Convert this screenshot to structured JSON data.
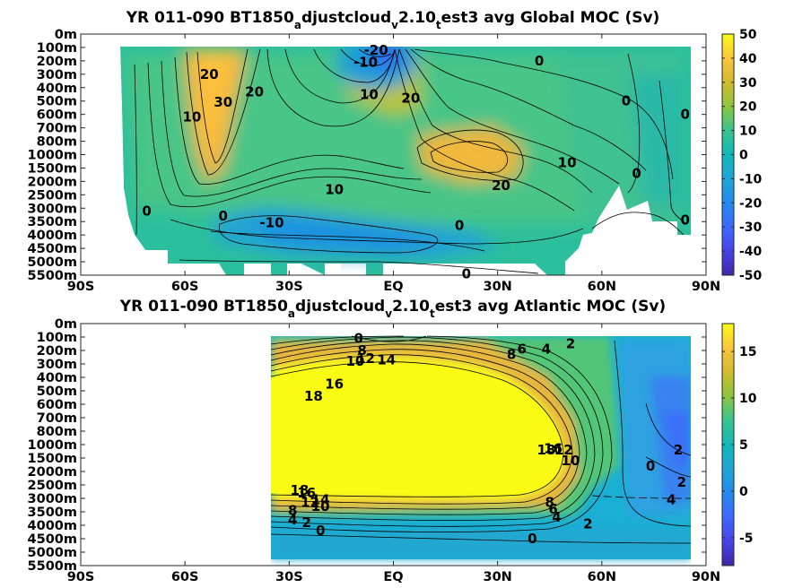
{
  "chart_data": [
    {
      "type": "heatmap",
      "title_parts": [
        "YR 011-090 BT1850",
        "a",
        "djustcloud",
        "v",
        "2.10",
        "t",
        "est3 avg  Global MOC (Sv)"
      ],
      "xlabel": "",
      "ylabel": "",
      "xlim": [
        -90,
        90
      ],
      "x_ticks": [
        -90,
        -60,
        -30,
        0,
        30,
        60,
        90
      ],
      "x_tick_labels": [
        "90S",
        "60S",
        "30S",
        "EQ",
        "30N",
        "60N",
        "90N"
      ],
      "y_tick_labels": [
        "0m",
        "100m",
        "200m",
        "300m",
        "400m",
        "500m",
        "600m",
        "700m",
        "800m",
        "1000m",
        "1500m",
        "2000m",
        "2500m",
        "3000m",
        "3500m",
        "4000m",
        "4500m",
        "5000m",
        "5500m"
      ],
      "colorbar": {
        "min": -50,
        "max": 50,
        "ticks": [
          50,
          40,
          30,
          20,
          10,
          0,
          -10,
          -20,
          -30,
          -40,
          -50
        ],
        "tick_labels": [
          "50",
          "40",
          "30",
          "20",
          "10",
          "0",
          "-10",
          "-20",
          "-30",
          "-40",
          "-50"
        ]
      },
      "colormap": "parula",
      "grid": false,
      "contour_labels": [
        {
          "text": "-20",
          "lat": -5,
          "level": 1.2
        },
        {
          "text": "-10",
          "lat": -8,
          "level": 2.1
        },
        {
          "text": "0",
          "lat": 42,
          "level": 2.0
        },
        {
          "text": "20",
          "lat": -53,
          "level": 3.0
        },
        {
          "text": "20",
          "lat": -40,
          "level": 4.3
        },
        {
          "text": "30",
          "lat": -49,
          "level": 5.1
        },
        {
          "text": "10",
          "lat": -58,
          "level": 6.2
        },
        {
          "text": "10",
          "lat": -7,
          "level": 4.5
        },
        {
          "text": "20",
          "lat": 5,
          "level": 4.8
        },
        {
          "text": "0",
          "lat": 67,
          "level": 5.0
        },
        {
          "text": "0",
          "lat": 84,
          "level": 6.0
        },
        {
          "text": "10",
          "lat": 50,
          "level": 9.6
        },
        {
          "text": "0",
          "lat": 70,
          "level": 10.4
        },
        {
          "text": "20",
          "lat": 31,
          "level": 11.3
        },
        {
          "text": "10",
          "lat": -17,
          "level": 11.6
        },
        {
          "text": "0",
          "lat": -71,
          "level": 13.2
        },
        {
          "text": "0",
          "lat": -49,
          "level": 13.6
        },
        {
          "text": "-10",
          "lat": -35,
          "level": 14.1
        },
        {
          "text": "0",
          "lat": 19,
          "level": 14.3
        },
        {
          "text": "0",
          "lat": 84,
          "level": 13.9
        },
        {
          "text": "0",
          "lat": 21,
          "level": 17.9
        }
      ]
    },
    {
      "type": "heatmap",
      "title_parts": [
        "YR 011-090 BT1850",
        "a",
        "djustcloud",
        "v",
        "2.10",
        "t",
        "est3 avg  Atlantic MOC (Sv)"
      ],
      "xlabel": "",
      "ylabel": "",
      "xlim": [
        -90,
        90
      ],
      "x_ticks": [
        -90,
        -60,
        -30,
        0,
        30,
        60,
        90
      ],
      "x_tick_labels": [
        "90S",
        "60S",
        "30S",
        "EQ",
        "30N",
        "60N",
        "90N"
      ],
      "y_tick_labels": [
        "0m",
        "100m",
        "200m",
        "300m",
        "400m",
        "500m",
        "600m",
        "700m",
        "800m",
        "1000m",
        "1500m",
        "2000m",
        "2500m",
        "3000m",
        "3500m",
        "4000m",
        "4500m",
        "5000m",
        "5500m"
      ],
      "colorbar": {
        "min": -8,
        "max": 18,
        "ticks": [
          15,
          10,
          5,
          0,
          -5
        ],
        "tick_labels": [
          "15",
          "10",
          "5",
          "0",
          "-5"
        ]
      },
      "colormap": "parula",
      "grid": false,
      "contour_labels": [
        {
          "text": "0",
          "lat": -10,
          "level": 1.1
        },
        {
          "text": "8",
          "lat": -9,
          "level": 2.0
        },
        {
          "text": "12",
          "lat": -8,
          "level": 2.6
        },
        {
          "text": "10",
          "lat": -11,
          "level": 2.8
        },
        {
          "text": "14",
          "lat": -2,
          "level": 2.7
        },
        {
          "text": "6",
          "lat": 37,
          "level": 1.9
        },
        {
          "text": "4",
          "lat": 44,
          "level": 1.9
        },
        {
          "text": "2",
          "lat": 51,
          "level": 1.5
        },
        {
          "text": "8",
          "lat": 34,
          "level": 2.3
        },
        {
          "text": "16",
          "lat": -17,
          "level": 4.5
        },
        {
          "text": "18",
          "lat": -23,
          "level": 5.4
        },
        {
          "text": "18",
          "lat": 44,
          "level": 9.4
        },
        {
          "text": "16",
          "lat": 46,
          "level": 9.3
        },
        {
          "text": "12",
          "lat": 49,
          "level": 9.4
        },
        {
          "text": "10",
          "lat": 51,
          "level": 10.2
        },
        {
          "text": "2",
          "lat": 82,
          "level": 9.4
        },
        {
          "text": "0",
          "lat": 74,
          "level": 10.6
        },
        {
          "text": "2",
          "lat": 83,
          "level": 11.8
        },
        {
          "text": "4",
          "lat": 80,
          "level": 13.1
        },
        {
          "text": "18",
          "lat": -27,
          "level": 12.4
        },
        {
          "text": "16",
          "lat": -25,
          "level": 12.6
        },
        {
          "text": "14",
          "lat": -21,
          "level": 13.1
        },
        {
          "text": "12",
          "lat": -24,
          "level": 13.3
        },
        {
          "text": "10",
          "lat": -21,
          "level": 13.6
        },
        {
          "text": "8",
          "lat": -29,
          "level": 13.9
        },
        {
          "text": "4",
          "lat": -29,
          "level": 14.6
        },
        {
          "text": "2",
          "lat": -25,
          "level": 14.8
        },
        {
          "text": "0",
          "lat": -21,
          "level": 15.4
        },
        {
          "text": "8",
          "lat": 45,
          "level": 13.3
        },
        {
          "text": "6",
          "lat": 46,
          "level": 13.8
        },
        {
          "text": "4",
          "lat": 47,
          "level": 14.4
        },
        {
          "text": "2",
          "lat": 56,
          "level": 14.9
        },
        {
          "text": "0",
          "lat": 40,
          "level": 16.0
        }
      ]
    }
  ]
}
